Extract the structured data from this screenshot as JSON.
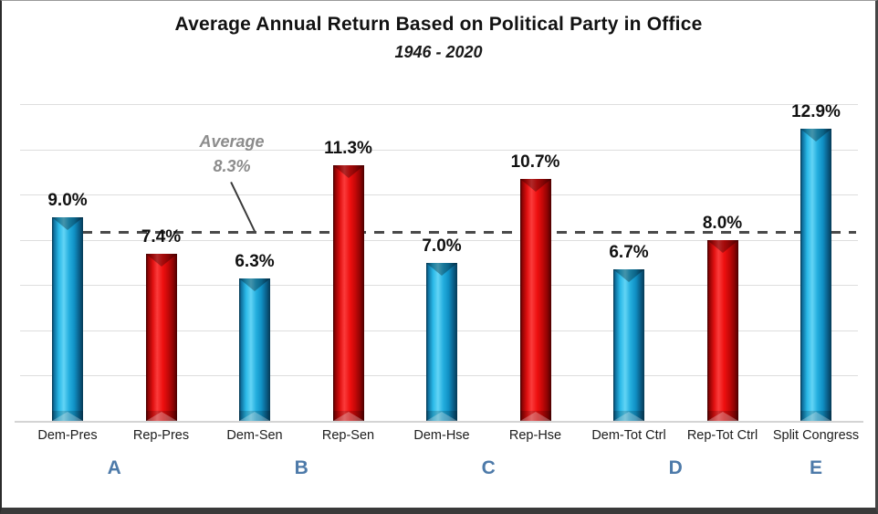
{
  "chart_data": {
    "type": "bar",
    "title": "Average Annual Return Based on Political Party in Office",
    "subtitle": "1946 - 2020",
    "categories": [
      "Dem-Pres",
      "Rep-Pres",
      "Dem-Sen",
      "Rep-Sen",
      "Dem-Hse",
      "Rep-Hse",
      "Dem-Tot Ctrl",
      "Rep-Tot Ctrl",
      "Split Congress"
    ],
    "values": [
      9.0,
      7.4,
      6.3,
      11.3,
      7.0,
      10.7,
      6.7,
      8.0,
      12.9
    ],
    "value_labels": [
      "9.0%",
      "7.4%",
      "6.3%",
      "11.3%",
      "7.0%",
      "10.7%",
      "6.7%",
      "8.0%",
      "12.9%"
    ],
    "bar_parties": [
      "dem",
      "rep",
      "dem",
      "rep",
      "dem",
      "rep",
      "dem",
      "rep",
      "dem"
    ],
    "groups": [
      {
        "label": "A",
        "bars": [
          0,
          1
        ]
      },
      {
        "label": "B",
        "bars": [
          2,
          3
        ]
      },
      {
        "label": "C",
        "bars": [
          4,
          5
        ]
      },
      {
        "label": "D",
        "bars": [
          6,
          7
        ]
      },
      {
        "label": "E",
        "bars": [
          8
        ]
      }
    ],
    "average": {
      "label": "Average",
      "value": 8.3,
      "value_label": "8.3%"
    },
    "ylabel": "",
    "xlabel": "",
    "ylim": [
      0,
      14
    ],
    "grid_step_pct": 2,
    "grid": true,
    "legend_position": "none",
    "colors": {
      "dem_bar": "#1babe2",
      "rep_bar": "#e81010",
      "average_line": "#4a4a4a",
      "average_text": "#8c8c8c",
      "group_letter": "#4d7aa9",
      "value_label": "#111111",
      "category_label": "#1c1c1c",
      "gridline": "#dedede"
    }
  }
}
